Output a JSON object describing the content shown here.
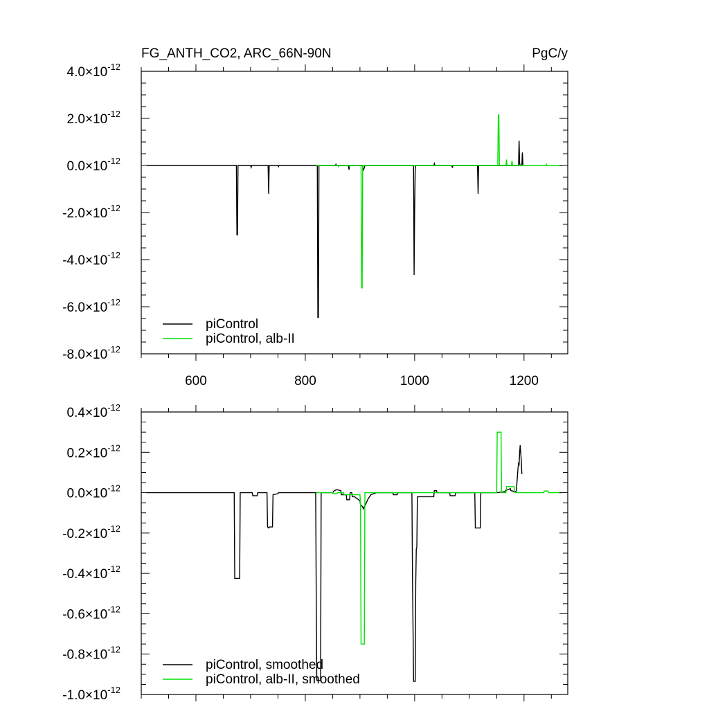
{
  "header": {
    "title": "FG_ANTH_CO2, ARC_66N-90N",
    "units": "PgC/y"
  },
  "colors": {
    "piControl": "#000000",
    "alb_II": "#00e000",
    "frame": "#000000"
  },
  "chart_data": [
    {
      "type": "line",
      "title": "FG_ANTH_CO2, ARC_66N-90N",
      "units": "PgC/y",
      "xlim": [
        500,
        1280
      ],
      "ylim": [
        -8.0,
        4.0
      ],
      "x_ticks": [
        600,
        800,
        1000,
        1200
      ],
      "x_tick_labels": [
        "600",
        "800",
        "1000",
        "1200"
      ],
      "y_ticks": [
        4.0,
        2.0,
        0.0,
        -2.0,
        -4.0,
        -6.0,
        -8.0
      ],
      "y_tick_labels": [
        {
          "mantissa": "4.0",
          "exponent": "-12"
        },
        {
          "mantissa": "2.0",
          "exponent": "-12"
        },
        {
          "mantissa": "0.0",
          "exponent": "-12"
        },
        {
          "mantissa": "-2.0",
          "exponent": "-12"
        },
        {
          "mantissa": "-4.0",
          "exponent": "-12"
        },
        {
          "mantissa": "-6.0",
          "exponent": "-12"
        },
        {
          "mantissa": "-8.0",
          "exponent": "-12"
        }
      ],
      "y_scale": "1e-12",
      "grid": false,
      "legend_position": "bottom-left",
      "series": [
        {
          "name": "piControl",
          "color": "#000000",
          "x": [
            510,
            674,
            675,
            676,
            677,
            700,
            701,
            702,
            732,
            733,
            734,
            750,
            751,
            752,
            822,
            823,
            824,
            825,
            855,
            856,
            857,
            879,
            880,
            881,
            905,
            906,
            907,
            908,
            909,
            998,
            999,
            1000,
            1001,
            1002,
            1035,
            1036,
            1037,
            1068,
            1069,
            1070,
            1115,
            1116,
            1117,
            1190,
            1191,
            1192,
            1193,
            1196,
            1197,
            1198,
            1199
          ],
          "y": [
            0,
            0,
            -2.95,
            -2.95,
            0,
            0,
            -0.08,
            0,
            0,
            -1.2,
            0,
            0,
            -0.05,
            0,
            0,
            -6.45,
            -6.45,
            0,
            0,
            0.05,
            0,
            0,
            -0.18,
            0,
            0,
            -0.2,
            -0.15,
            -0.1,
            0,
            0,
            -4.65,
            -1.9,
            -0.15,
            0,
            0,
            0.08,
            0,
            0,
            -0.1,
            0,
            0,
            -1.2,
            0,
            0,
            1.05,
            0.1,
            0,
            0,
            0.55,
            0.05,
            0.05
          ]
        },
        {
          "name": "piControl, alb-II",
          "color": "#00e000",
          "x": [
            820,
            860,
            861,
            862,
            880,
            881,
            882,
            902,
            903,
            904,
            905,
            1152,
            1153,
            1154,
            1155,
            1167,
            1168,
            1169,
            1177,
            1178,
            1179,
            1240,
            1241,
            1242,
            1270
          ],
          "y": [
            0,
            0,
            -0.05,
            0,
            0,
            -0.04,
            0,
            0,
            -5.2,
            -5.2,
            0,
            0,
            2.15,
            2.15,
            0,
            0,
            0.25,
            0,
            0,
            0.2,
            0,
            0,
            0.05,
            0,
            0
          ]
        }
      ]
    },
    {
      "type": "line",
      "xlim": [
        500,
        1280
      ],
      "ylim": [
        -1.0,
        0.4
      ],
      "x_ticks": [
        600,
        800,
        1000,
        1200
      ],
      "y_ticks": [
        0.4,
        0.2,
        0.0,
        -0.2,
        -0.4,
        -0.6,
        -0.8,
        -1.0
      ],
      "y_tick_labels": [
        {
          "mantissa": "0.4",
          "exponent": "-12"
        },
        {
          "mantissa": "0.2",
          "exponent": "-12"
        },
        {
          "mantissa": "0.0",
          "exponent": "-12"
        },
        {
          "mantissa": "-0.2",
          "exponent": "-12"
        },
        {
          "mantissa": "-0.4",
          "exponent": "-12"
        },
        {
          "mantissa": "-0.6",
          "exponent": "-12"
        },
        {
          "mantissa": "-0.8",
          "exponent": "-12"
        },
        {
          "mantissa": "-1.0",
          "exponent": "-12"
        }
      ],
      "y_scale": "1e-12",
      "grid": false,
      "legend_position": "bottom-left",
      "series": [
        {
          "name": "piControl, smoothed",
          "color": "#000000",
          "x": [
            510,
            670,
            671,
            680,
            681,
            703,
            704,
            712,
            713,
            730,
            731,
            733,
            734,
            740,
            741,
            750,
            751,
            819,
            820,
            821,
            828,
            829,
            850,
            853,
            858,
            865,
            866,
            875,
            876,
            881,
            882,
            885,
            886,
            890,
            900,
            901,
            905,
            906,
            910,
            915,
            920,
            930,
            960,
            961,
            968,
            969,
            995,
            996,
            997,
            998,
            1001,
            1002,
            1003,
            1004,
            1005,
            1035,
            1036,
            1040,
            1041,
            1064,
            1065,
            1074,
            1075,
            1110,
            1111,
            1120,
            1121,
            1150,
            1165,
            1166,
            1175,
            1176,
            1185,
            1186,
            1189,
            1190,
            1191,
            1192,
            1193,
            1195,
            1196,
            1197
          ],
          "y": [
            0,
            0,
            -0.425,
            -0.425,
            0,
            0,
            -0.015,
            -0.015,
            0,
            0,
            -0.17,
            -0.175,
            -0.17,
            -0.17,
            -0.01,
            -0.005,
            0,
            0,
            -0.5,
            -0.93,
            -0.93,
            0,
            0,
            0.01,
            0.015,
            0.01,
            -0.01,
            -0.01,
            -0.035,
            -0.035,
            0,
            0,
            -0.02,
            -0.02,
            -0.04,
            -0.06,
            -0.07,
            -0.08,
            -0.06,
            -0.03,
            -0.01,
            0,
            0,
            -0.01,
            -0.01,
            0,
            0,
            -0.4,
            -0.66,
            -0.935,
            -0.935,
            -0.45,
            -0.28,
            -0.27,
            -0.02,
            -0.02,
            0.01,
            0.01,
            0,
            0,
            -0.015,
            -0.015,
            0,
            0,
            -0.175,
            -0.175,
            0,
            0,
            0.005,
            0.01,
            0.02,
            0.01,
            0.005,
            0.01,
            0.12,
            0.145,
            0.14,
            0.2,
            0.235,
            0.16,
            0.095,
            0.095
          ]
        },
        {
          "name": "piControl, alb-II, smoothed",
          "color": "#00e000",
          "x": [
            820,
            850,
            851,
            858,
            859,
            870,
            871,
            900,
            901,
            902,
            903,
            908,
            909,
            1150,
            1151,
            1158,
            1159,
            1167,
            1168,
            1175,
            1176,
            1182,
            1183,
            1236,
            1237,
            1244,
            1245,
            1270
          ],
          "y": [
            0,
            0,
            -0.005,
            -0.005,
            0,
            0,
            -0.01,
            -0.01,
            -0.06,
            -0.75,
            -0.75,
            -0.75,
            0,
            0,
            0.3,
            0.3,
            0,
            0,
            0.03,
            0.03,
            0.03,
            0.03,
            0,
            0,
            0.008,
            0.008,
            0,
            0
          ]
        }
      ]
    }
  ]
}
